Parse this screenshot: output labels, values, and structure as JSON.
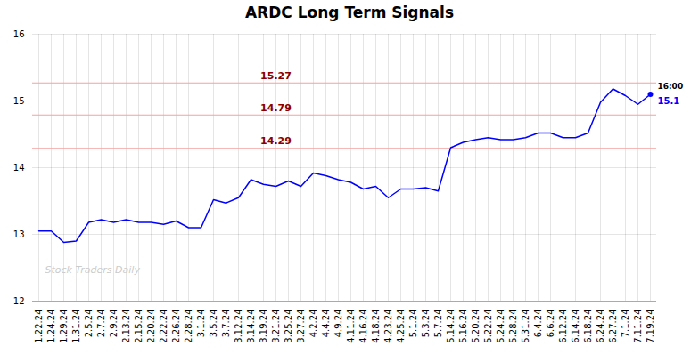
{
  "chart_data": {
    "type": "line",
    "title": "ARDC Long Term Signals",
    "categories": [
      "1.22.24",
      "1.24.24",
      "1.29.24",
      "1.31.24",
      "2.5.24",
      "2.7.24",
      "2.9.24",
      "2.13.24",
      "2.15.24",
      "2.20.24",
      "2.22.24",
      "2.26.24",
      "2.28.24",
      "3.1.24",
      "3.5.24",
      "3.7.24",
      "3.12.24",
      "3.14.24",
      "3.19.24",
      "3.21.24",
      "3.25.24",
      "3.27.24",
      "4.2.24",
      "4.4.24",
      "4.9.24",
      "4.11.24",
      "4.16.24",
      "4.18.24",
      "4.23.24",
      "4.25.24",
      "5.1.24",
      "5.3.24",
      "5.7.24",
      "5.14.24",
      "5.16.24",
      "5.20.24",
      "5.22.24",
      "5.24.24",
      "5.28.24",
      "5.31.24",
      "6.4.24",
      "6.6.24",
      "6.12.24",
      "6.14.24",
      "6.18.24",
      "6.24.24",
      "6.27.24",
      "7.1.24",
      "7.11.24",
      "7.19.24"
    ],
    "values": [
      13.05,
      13.05,
      12.88,
      12.9,
      13.18,
      13.22,
      13.18,
      13.22,
      13.18,
      13.18,
      13.15,
      13.2,
      13.1,
      13.1,
      13.52,
      13.47,
      13.55,
      13.82,
      13.75,
      13.72,
      13.8,
      13.72,
      13.92,
      13.88,
      13.82,
      13.78,
      13.68,
      13.72,
      13.55,
      13.68,
      13.68,
      13.7,
      13.65,
      14.3,
      14.38,
      14.42,
      14.45,
      14.42,
      14.42,
      14.45,
      14.52,
      14.52,
      14.45,
      14.45,
      14.52,
      14.98,
      15.18,
      15.08,
      14.95,
      15.1
    ],
    "color": "blue",
    "ylim": [
      12,
      16
    ],
    "yticks": [
      12,
      13,
      14,
      15,
      16
    ],
    "grid": true,
    "reference_lines": {
      "values": [
        15.27,
        14.79,
        14.29
      ],
      "color": "#f5a0a0"
    },
    "annotations": [
      "16:00",
      "15.1"
    ],
    "watermark": "Stock Traders Daily"
  }
}
